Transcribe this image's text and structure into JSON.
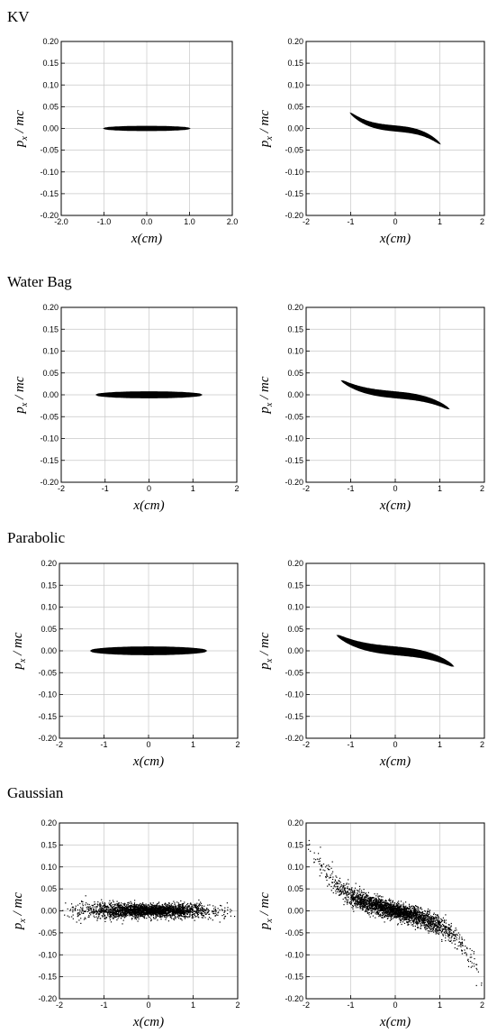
{
  "sections": [
    "KV",
    "Water Bag",
    "Parabolic",
    "Gaussian"
  ],
  "chart_data": [
    {
      "type": "scatter",
      "section": "KV",
      "panel": "left",
      "xlabel": "x(cm)",
      "ylabel": "p_x / mc",
      "xlim": [
        -2,
        2
      ],
      "ylim": [
        -0.2,
        0.2
      ],
      "xticks": [
        "-2.0",
        "-1.0",
        "0.0",
        "1.0",
        "2.0"
      ],
      "yticks": [
        "0.20",
        "0.15",
        "0.10",
        "0.05",
        "0.00",
        "-0.05",
        "-0.10",
        "-0.15",
        "-0.20"
      ],
      "grid": true,
      "distribution": {
        "shape": "ellipse",
        "x_half_width": 1.0,
        "p_half_height": 0.005,
        "skew": 0,
        "cubic": 0,
        "density": "solid"
      }
    },
    {
      "type": "scatter",
      "section": "KV",
      "panel": "right",
      "xlabel": "x(cm)",
      "ylabel": "p_x / mc",
      "xlim": [
        -2,
        2
      ],
      "ylim": [
        -0.2,
        0.2
      ],
      "xticks": [
        "-2",
        "-1",
        "0",
        "1",
        "2"
      ],
      "yticks": [
        "0.20",
        "0.15",
        "0.10",
        "0.05",
        "0.00",
        "-0.05",
        "-0.10",
        "-0.15",
        "-0.20"
      ],
      "grid": true,
      "distribution": {
        "shape": "s-curve",
        "x_half_width": 1.0,
        "p_half_height": 0.006,
        "skew": -0.01,
        "cubic": -0.025,
        "density": "solid"
      }
    },
    {
      "type": "scatter",
      "section": "Water Bag",
      "panel": "left",
      "xlabel": "x(cm)",
      "ylabel": "p_x / mc",
      "xlim": [
        -2,
        2
      ],
      "ylim": [
        -0.2,
        0.2
      ],
      "xticks": [
        "-2",
        "-1",
        "0",
        "1",
        "2"
      ],
      "yticks": [
        "0.20",
        "0.15",
        "0.10",
        "0.05",
        "0.00",
        "-0.05",
        "-0.10",
        "-0.15",
        "-0.20"
      ],
      "grid": true,
      "distribution": {
        "shape": "ellipse",
        "x_half_width": 1.2,
        "p_half_height": 0.007,
        "skew": 0,
        "cubic": 0,
        "density": "solid"
      }
    },
    {
      "type": "scatter",
      "section": "Water Bag",
      "panel": "right",
      "xlabel": "x(cm)",
      "ylabel": "p_x / mc",
      "xlim": [
        -2,
        2
      ],
      "ylim": [
        -0.2,
        0.2
      ],
      "xticks": [
        "-2",
        "-1",
        "0",
        "1",
        "2"
      ],
      "yticks": [
        "0.20",
        "0.15",
        "0.10",
        "0.05",
        "0.00",
        "-0.05",
        "-0.10",
        "-0.15",
        "-0.20"
      ],
      "grid": true,
      "distribution": {
        "shape": "s-curve",
        "x_half_width": 1.2,
        "p_half_height": 0.007,
        "skew": -0.012,
        "cubic": -0.02,
        "density": "solid"
      }
    },
    {
      "type": "scatter",
      "section": "Parabolic",
      "panel": "left",
      "xlabel": "x(cm)",
      "ylabel": "p_x / mc",
      "xlim": [
        -2,
        2
      ],
      "ylim": [
        -0.2,
        0.2
      ],
      "xticks": [
        "-2",
        "-1",
        "0",
        "1",
        "2"
      ],
      "yticks": [
        "0.20",
        "0.15",
        "0.10",
        "0.05",
        "0.00",
        "-0.05",
        "-0.10",
        "-0.15",
        "-0.20"
      ],
      "grid": true,
      "distribution": {
        "shape": "ellipse",
        "x_half_width": 1.3,
        "p_half_height": 0.009,
        "skew": 0,
        "cubic": 0,
        "density": "solid"
      }
    },
    {
      "type": "scatter",
      "section": "Parabolic",
      "panel": "right",
      "xlabel": "x(cm)",
      "ylabel": "p_x / mc",
      "xlim": [
        -2,
        2
      ],
      "ylim": [
        -0.2,
        0.2
      ],
      "xticks": [
        "-2",
        "-1",
        "0",
        "1",
        "2"
      ],
      "yticks": [
        "0.20",
        "0.15",
        "0.10",
        "0.05",
        "0.00",
        "-0.05",
        "-0.10",
        "-0.15",
        "-0.20"
      ],
      "grid": true,
      "distribution": {
        "shape": "s-curve",
        "x_half_width": 1.3,
        "p_half_height": 0.009,
        "skew": -0.013,
        "cubic": -0.022,
        "density": "solid"
      }
    },
    {
      "type": "scatter",
      "section": "Gaussian",
      "panel": "left",
      "xlabel": "x(cm)",
      "ylabel": "p_x / mc",
      "xlim": [
        -2,
        2
      ],
      "ylim": [
        -0.2,
        0.2
      ],
      "xticks": [
        "-2",
        "-1",
        "0",
        "1",
        "2"
      ],
      "yticks": [
        "0.20",
        "0.15",
        "0.10",
        "0.05",
        "0.00",
        "-0.05",
        "-0.10",
        "-0.15",
        "-0.20"
      ],
      "grid": true,
      "distribution": {
        "shape": "gaussian-cloud",
        "x_half_width": 1.85,
        "p_half_height": 0.012,
        "skew": 0,
        "cubic": 0,
        "density": "points"
      }
    },
    {
      "type": "scatter",
      "section": "Gaussian",
      "panel": "right",
      "xlabel": "x(cm)",
      "ylabel": "p_x / mc",
      "xlim": [
        -2,
        2
      ],
      "ylim": [
        -0.2,
        0.2
      ],
      "xticks": [
        "-2",
        "-1",
        "0",
        "1",
        "2"
      ],
      "yticks": [
        "0.20",
        "0.15",
        "0.10",
        "0.05",
        "0.00",
        "-0.05",
        "-0.10",
        "-0.15",
        "-0.20"
      ],
      "grid": true,
      "distribution": {
        "shape": "gaussian-s-curve",
        "x_half_width": 1.85,
        "p_half_height": 0.016,
        "skew": -0.035,
        "cubic": -0.012,
        "density": "points"
      }
    }
  ]
}
